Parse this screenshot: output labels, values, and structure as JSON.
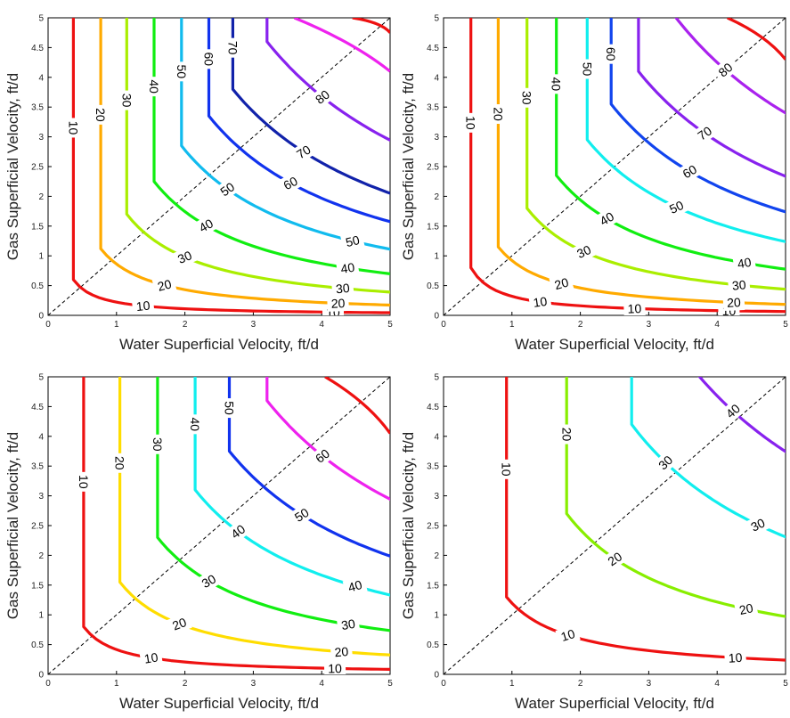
{
  "chart_data": [
    {
      "type": "line",
      "subtype": "contour",
      "xlabel": "Water Superficial Velocity, ft/d",
      "ylabel": "Gas Superficial Velocity, ft/d",
      "xlim": [
        0,
        5
      ],
      "ylim": [
        0,
        5
      ],
      "x_ticks": [
        "0",
        "1",
        "2",
        "3",
        "4",
        "5"
      ],
      "y_ticks": [
        "0",
        "0.5",
        "1",
        "1.5",
        "2",
        "2.5",
        "3",
        "3.5",
        "4",
        "4.5",
        "5"
      ],
      "grid": false,
      "reference_line": {
        "style": "dashed",
        "color": "#000000",
        "x": [
          0,
          5
        ],
        "y": [
          0,
          5
        ]
      },
      "levels": [
        10,
        20,
        30,
        40,
        50,
        60,
        70,
        80
      ],
      "level_colors": [
        "#ee1111",
        "#ffaa00",
        "#aaee00",
        "#11ee11",
        "#11bbee",
        "#1133ee",
        "#1122aa",
        "#8822ee"
      ],
      "contours": [
        {
          "level": 10,
          "corner": [
            0.37,
            0.6
          ],
          "top_labels": [
            "10"
          ],
          "bottom_labels": [
            "10",
            "10"
          ]
        },
        {
          "level": 20,
          "corner": [
            0.77,
            1.12
          ],
          "top_labels": [
            "20"
          ],
          "bottom_labels": [
            "20",
            "20"
          ]
        },
        {
          "level": 30,
          "corner": [
            1.15,
            1.7
          ],
          "top_labels": [
            "30"
          ],
          "bottom_labels": [
            "30",
            "30"
          ]
        },
        {
          "level": 40,
          "corner": [
            1.55,
            2.25
          ],
          "top_labels": [
            "40"
          ],
          "bottom_labels": [
            "40",
            "40"
          ]
        },
        {
          "level": 50,
          "corner": [
            1.95,
            2.85
          ],
          "top_labels": [
            "50"
          ],
          "bottom_labels": [
            "50",
            "50"
          ]
        },
        {
          "level": 60,
          "corner": [
            2.35,
            3.35
          ],
          "top_labels": [
            "60"
          ],
          "bottom_labels": [
            "60"
          ]
        },
        {
          "level": 70,
          "corner": [
            2.7,
            3.8
          ],
          "top_labels": [
            "70"
          ],
          "bottom_labels": [
            "70"
          ]
        },
        {
          "level": 80,
          "corner": [
            3.2,
            4.6
          ],
          "top_labels": [],
          "bottom_labels": [
            "80"
          ]
        }
      ],
      "extra_curves": [
        {
          "color": "#ee22ee",
          "points": [
            [
              3.6,
              5.0
            ],
            [
              5.0,
              4.1
            ]
          ]
        },
        {
          "color": "#ee1111",
          "points": [
            [
              4.45,
              5.0
            ],
            [
              5.0,
              4.75
            ]
          ]
        }
      ]
    },
    {
      "type": "line",
      "subtype": "contour",
      "xlabel": "Water Superficial Velocity, ft/d",
      "ylabel": "Gas Superficial Velocity, ft/d",
      "xlim": [
        0,
        5
      ],
      "ylim": [
        0,
        5
      ],
      "x_ticks": [
        "0",
        "1",
        "2",
        "3",
        "4",
        "5"
      ],
      "y_ticks": [
        "0",
        "0.5",
        "1",
        "1.5",
        "2",
        "2.5",
        "3",
        "3.5",
        "4",
        "4.5",
        "5"
      ],
      "grid": false,
      "reference_line": {
        "style": "dashed",
        "color": "#000000",
        "x": [
          0,
          5
        ],
        "y": [
          0,
          5
        ]
      },
      "levels": [
        10,
        20,
        30,
        40,
        50,
        60,
        70,
        80
      ],
      "level_colors": [
        "#ee1111",
        "#ffaa00",
        "#aaee00",
        "#11ee11",
        "#11eeee",
        "#1144ee",
        "#8822ee",
        "#aa22ee"
      ],
      "contours": [
        {
          "level": 10,
          "corner": [
            0.4,
            0.8
          ],
          "top_labels": [
            "10"
          ],
          "bottom_labels": [
            "10",
            "10",
            "10"
          ]
        },
        {
          "level": 20,
          "corner": [
            0.8,
            1.15
          ],
          "top_labels": [
            "20"
          ],
          "bottom_labels": [
            "20",
            "20"
          ]
        },
        {
          "level": 30,
          "corner": [
            1.22,
            1.8
          ],
          "top_labels": [
            "30"
          ],
          "bottom_labels": [
            "30",
            "30"
          ]
        },
        {
          "level": 40,
          "corner": [
            1.65,
            2.35
          ],
          "top_labels": [
            "40"
          ],
          "bottom_labels": [
            "40",
            "40"
          ]
        },
        {
          "level": 50,
          "corner": [
            2.1,
            2.95
          ],
          "top_labels": [
            "50"
          ],
          "bottom_labels": [
            "50"
          ]
        },
        {
          "level": 60,
          "corner": [
            2.45,
            3.55
          ],
          "top_labels": [
            "60"
          ],
          "bottom_labels": [
            "60"
          ]
        },
        {
          "level": 70,
          "corner": [
            2.85,
            4.1
          ],
          "top_labels": [],
          "bottom_labels": [
            "70"
          ]
        },
        {
          "level": 80,
          "corner": [
            3.4,
            5.0
          ],
          "top_labels": [],
          "bottom_labels": [
            "80"
          ]
        }
      ],
      "extra_curves": [
        {
          "color": "#ee1111",
          "points": [
            [
              4.15,
              5.0
            ],
            [
              5.0,
              4.3
            ]
          ]
        }
      ]
    },
    {
      "type": "line",
      "subtype": "contour",
      "xlabel": "Water Superficial Velocity, ft/d",
      "ylabel": "Gas Superficial Velocity, ft/d",
      "xlim": [
        0,
        5
      ],
      "ylim": [
        0,
        5
      ],
      "x_ticks": [
        "0",
        "1",
        "2",
        "3",
        "4",
        "5"
      ],
      "y_ticks": [
        "0",
        "0.5",
        "1",
        "1.5",
        "2",
        "2.5",
        "3",
        "3.5",
        "4",
        "4.5",
        "5"
      ],
      "grid": false,
      "reference_line": {
        "style": "dashed",
        "color": "#000000",
        "x": [
          0,
          5
        ],
        "y": [
          0,
          5
        ]
      },
      "levels": [
        10,
        20,
        30,
        40,
        50,
        60
      ],
      "level_colors": [
        "#ee1111",
        "#ffdd00",
        "#11ee11",
        "#11eeee",
        "#1133ee",
        "#ee22ee"
      ],
      "contours": [
        {
          "level": 10,
          "corner": [
            0.52,
            0.8
          ],
          "top_labels": [
            "10"
          ],
          "bottom_labels": [
            "10",
            "10"
          ]
        },
        {
          "level": 20,
          "corner": [
            1.05,
            1.55
          ],
          "top_labels": [
            "20"
          ],
          "bottom_labels": [
            "20",
            "20"
          ]
        },
        {
          "level": 30,
          "corner": [
            1.6,
            2.3
          ],
          "top_labels": [
            "30"
          ],
          "bottom_labels": [
            "30",
            "30"
          ]
        },
        {
          "level": 40,
          "corner": [
            2.15,
            3.1
          ],
          "top_labels": [
            "40"
          ],
          "bottom_labels": [
            "40",
            "40"
          ]
        },
        {
          "level": 50,
          "corner": [
            2.65,
            3.75
          ],
          "top_labels": [
            "50"
          ],
          "bottom_labels": [
            "50"
          ]
        },
        {
          "level": 60,
          "corner": [
            3.2,
            4.6
          ],
          "top_labels": [],
          "bottom_labels": [
            "60"
          ]
        }
      ],
      "extra_curves": [
        {
          "color": "#ee1111",
          "points": [
            [
              4.05,
              5.0
            ],
            [
              5.0,
              4.05
            ]
          ]
        }
      ]
    },
    {
      "type": "line",
      "subtype": "contour",
      "xlabel": "Water Superficial Velocity, ft/d",
      "ylabel": "Gas Superficial Velocity, ft/d",
      "xlim": [
        0,
        5
      ],
      "ylim": [
        0,
        5
      ],
      "x_ticks": [
        "0",
        "1",
        "2",
        "3",
        "4",
        "5"
      ],
      "y_ticks": [
        "0",
        "0.5",
        "1",
        "1.5",
        "2",
        "2.5",
        "3",
        "3.5",
        "4",
        "4.5",
        "5"
      ],
      "grid": false,
      "reference_line": {
        "style": "dashed",
        "color": "#000000",
        "x": [
          0,
          5
        ],
        "y": [
          0,
          5
        ]
      },
      "levels": [
        10,
        20,
        30,
        40
      ],
      "level_colors": [
        "#ee1111",
        "#88ee00",
        "#11eeee",
        "#8822ee"
      ],
      "contours": [
        {
          "level": 10,
          "corner": [
            0.92,
            1.3
          ],
          "top_labels": [
            "10"
          ],
          "bottom_labels": [
            "10",
            "10"
          ]
        },
        {
          "level": 20,
          "corner": [
            1.8,
            2.7
          ],
          "top_labels": [
            "20"
          ],
          "bottom_labels": [
            "20",
            "20"
          ]
        },
        {
          "level": 30,
          "corner": [
            2.75,
            4.2
          ],
          "top_labels": [],
          "bottom_labels": [
            "30",
            "30"
          ]
        },
        {
          "level": 40,
          "corner": [
            3.6,
            5.2
          ],
          "top_labels": [],
          "bottom_labels": [
            "40"
          ]
        }
      ],
      "extra_curves": []
    }
  ]
}
